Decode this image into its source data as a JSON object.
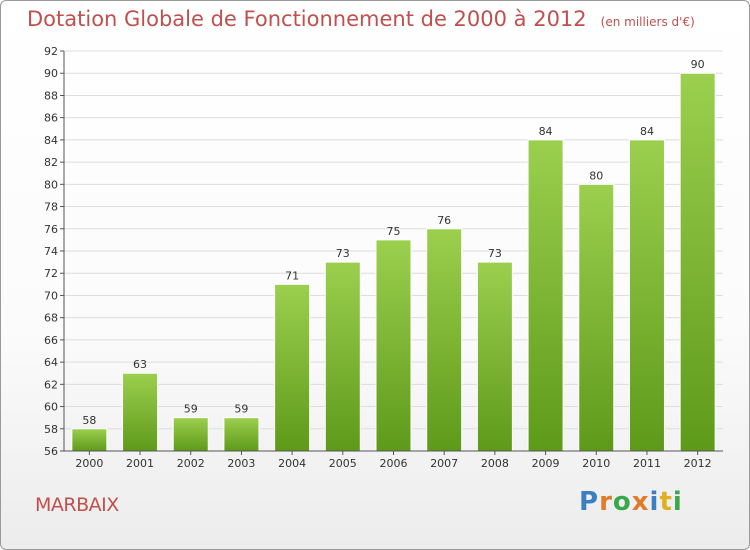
{
  "header": {
    "title": "Dotation Globale de Fonctionnement de 2000 à 2012",
    "unit": "(en milliers d'€)"
  },
  "commune": "MARBAIX",
  "logo": {
    "text": "Proxiti",
    "name": "proxiti-logo"
  },
  "colors": {
    "bar_top": "#9ccf4e",
    "bar_bottom": "#5e9a1a",
    "title": "#c0504d",
    "grid": "#dddddd"
  },
  "chart_data": {
    "type": "bar",
    "title": "Dotation Globale de Fonctionnement de 2000 à 2012",
    "subtitle": "(en milliers d'€)",
    "xlabel": "",
    "ylabel": "",
    "categories": [
      "2000",
      "2001",
      "2002",
      "2003",
      "2004",
      "2005",
      "2006",
      "2007",
      "2008",
      "2009",
      "2010",
      "2011",
      "2012"
    ],
    "values": [
      58,
      63,
      59,
      59,
      71,
      73,
      75,
      76,
      73,
      84,
      80,
      84,
      90
    ],
    "ylim": [
      56,
      92
    ],
    "ytick_step": 2,
    "grid": true,
    "data_labels": true
  }
}
